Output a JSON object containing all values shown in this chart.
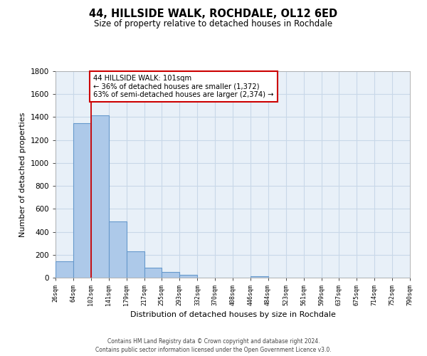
{
  "title": "44, HILLSIDE WALK, ROCHDALE, OL12 6ED",
  "subtitle": "Size of property relative to detached houses in Rochdale",
  "xlabel": "Distribution of detached houses by size in Rochdale",
  "ylabel": "Number of detached properties",
  "bar_edges": [
    26,
    64,
    102,
    141,
    179,
    217,
    255,
    293,
    332,
    370,
    408,
    446,
    484,
    523,
    561,
    599,
    637,
    675,
    714,
    752,
    790
  ],
  "bar_heights": [
    140,
    1350,
    1415,
    490,
    230,
    85,
    50,
    25,
    0,
    0,
    0,
    15,
    0,
    0,
    0,
    0,
    0,
    0,
    0,
    0
  ],
  "bar_color": "#adc9e9",
  "bar_edge_color": "#6699cc",
  "property_line_x": 102,
  "property_line_color": "#cc0000",
  "annotation_text": "44 HILLSIDE WALK: 101sqm\n← 36% of detached houses are smaller (1,372)\n63% of semi-detached houses are larger (2,374) →",
  "annotation_box_color": "#ffffff",
  "annotation_box_edge_color": "#cc0000",
  "ylim": [
    0,
    1800
  ],
  "yticks": [
    0,
    200,
    400,
    600,
    800,
    1000,
    1200,
    1400,
    1600,
    1800
  ],
  "tick_labels": [
    "26sqm",
    "64sqm",
    "102sqm",
    "141sqm",
    "179sqm",
    "217sqm",
    "255sqm",
    "293sqm",
    "332sqm",
    "370sqm",
    "408sqm",
    "446sqm",
    "484sqm",
    "523sqm",
    "561sqm",
    "599sqm",
    "637sqm",
    "675sqm",
    "714sqm",
    "752sqm",
    "790sqm"
  ],
  "footer_text": "Contains HM Land Registry data © Crown copyright and database right 2024.\nContains public sector information licensed under the Open Government Licence v3.0.",
  "bg_color": "#ffffff",
  "grid_color": "#c8d8e8",
  "plot_bg_color": "#e8f0f8"
}
